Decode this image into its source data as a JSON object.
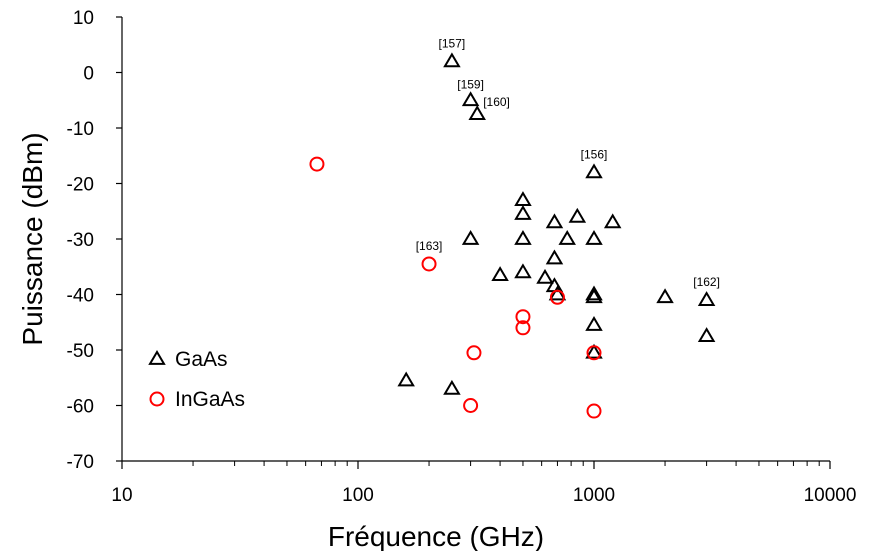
{
  "chart_data": {
    "type": "scatter",
    "title": "",
    "xlabel": "Fréquence (GHz)",
    "ylabel": "Puissance (dBm)",
    "xscale": "log",
    "xlim": [
      10,
      10000
    ],
    "ylim": [
      -70,
      10
    ],
    "xticks": [
      10,
      100,
      1000,
      10000
    ],
    "xtick_labels": [
      "10",
      "100",
      "1000",
      "10000"
    ],
    "yticks": [
      10,
      0,
      -10,
      -20,
      -30,
      -40,
      -50,
      -60,
      -70
    ],
    "ytick_labels": [
      "10",
      "0",
      "-10",
      "-20",
      "-30",
      "-40",
      "-50",
      "-60",
      "-70"
    ],
    "grid": false,
    "legend_position": "bottom-left",
    "series": [
      {
        "name": "GaAs",
        "marker": "triangle",
        "color": "#000000",
        "points": [
          [
            250,
            2
          ],
          [
            300,
            -5
          ],
          [
            320,
            -7.5
          ],
          [
            300,
            -30
          ],
          [
            400,
            -36.5
          ],
          [
            500,
            -23
          ],
          [
            500,
            -25.5
          ],
          [
            500,
            -30
          ],
          [
            500,
            -36
          ],
          [
            620,
            -37
          ],
          [
            680,
            -27
          ],
          [
            680,
            -33.5
          ],
          [
            680,
            -38.5
          ],
          [
            700,
            -40
          ],
          [
            770,
            -30
          ],
          [
            850,
            -26
          ],
          [
            1000,
            -18
          ],
          [
            1000,
            -30
          ],
          [
            1000,
            -40
          ],
          [
            1000,
            -40.5
          ],
          [
            1000,
            -45.5
          ],
          [
            1000,
            -50.5
          ],
          [
            1200,
            -27
          ],
          [
            2000,
            -40.5
          ],
          [
            3000,
            -41
          ],
          [
            3000,
            -47.5
          ],
          [
            160,
            -55.5
          ],
          [
            250,
            -57
          ]
        ]
      },
      {
        "name": "InGaAs",
        "marker": "circle",
        "color": "#ff0000",
        "points": [
          [
            67,
            -16.5
          ],
          [
            200,
            -34.5
          ],
          [
            300,
            -60
          ],
          [
            310,
            -50.5
          ],
          [
            500,
            -44
          ],
          [
            500,
            -46
          ],
          [
            700,
            -40.5
          ],
          [
            1000,
            -50.5
          ],
          [
            1000,
            -61
          ]
        ]
      }
    ],
    "annotations": [
      {
        "text": "[157]",
        "x": 250,
        "y": 2
      },
      {
        "text": "[159]",
        "x": 300,
        "y": -5
      },
      {
        "text": "[160]",
        "x": 320,
        "y": -7.5
      },
      {
        "text": "[156]",
        "x": 1000,
        "y": -18
      },
      {
        "text": "[163]",
        "x": 200,
        "y": -34.5
      },
      {
        "text": "[162]",
        "x": 3000,
        "y": -41
      }
    ]
  }
}
